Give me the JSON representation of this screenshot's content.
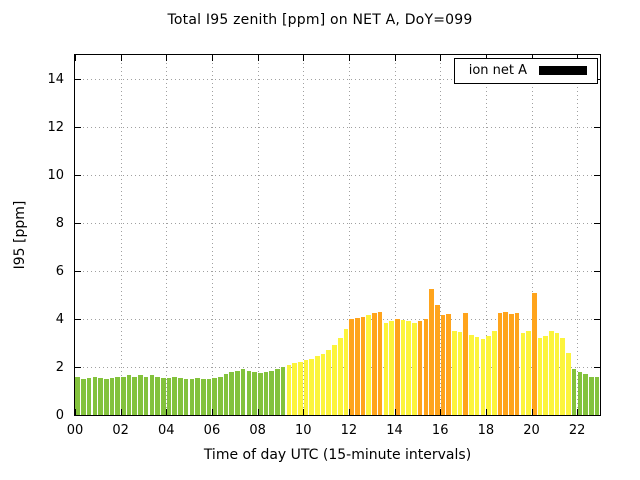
{
  "legend": {
    "label": "ion net A",
    "swatch_color": "#000000"
  },
  "chart_data": {
    "type": "bar",
    "title": "Total I95 zenith [ppm] on NET A, DoY=099",
    "xlabel": "Time of day UTC (15-minute intervals)",
    "ylabel": "I95 [ppm]",
    "xlim_hours": [
      0,
      23
    ],
    "ylim": [
      0,
      15
    ],
    "x_tick_hours": [
      0,
      2,
      4,
      6,
      8,
      10,
      12,
      14,
      16,
      18,
      20,
      22
    ],
    "x_tick_labels": [
      "00",
      "02",
      "04",
      "06",
      "08",
      "10",
      "12",
      "14",
      "16",
      "18",
      "20",
      "22"
    ],
    "y_ticks": [
      0,
      2,
      4,
      6,
      8,
      10,
      12,
      14
    ],
    "interval_minutes": 15,
    "start_time": "00:00",
    "grid": true,
    "legend_position": "top-right",
    "series_name": "ion net A",
    "level_colors": {
      "g": "#83c23d",
      "y": "#fcf43c",
      "o": "#ffa41c"
    },
    "values": [
      1.6,
      1.5,
      1.55,
      1.6,
      1.55,
      1.5,
      1.55,
      1.6,
      1.6,
      1.65,
      1.6,
      1.65,
      1.6,
      1.65,
      1.6,
      1.55,
      1.55,
      1.6,
      1.55,
      1.5,
      1.5,
      1.55,
      1.5,
      1.5,
      1.55,
      1.6,
      1.7,
      1.8,
      1.85,
      1.9,
      1.85,
      1.8,
      1.75,
      1.8,
      1.85,
      1.9,
      2.0,
      2.1,
      2.15,
      2.2,
      2.3,
      2.35,
      2.45,
      2.55,
      2.7,
      2.9,
      3.2,
      3.6,
      4.0,
      4.05,
      4.1,
      4.15,
      4.25,
      4.3,
      3.85,
      3.9,
      4.0,
      3.95,
      3.9,
      3.85,
      3.9,
      4.0,
      5.25,
      4.6,
      4.15,
      4.2,
      3.5,
      3.45,
      4.25,
      3.35,
      3.25,
      3.15,
      3.3,
      3.5,
      4.25,
      4.3,
      4.2,
      4.25,
      3.4,
      3.5,
      5.1,
      3.2,
      3.3,
      3.5,
      3.4,
      3.2,
      2.6,
      1.9,
      1.8,
      1.7,
      1.6,
      1.6
    ],
    "levels": [
      "g",
      "g",
      "g",
      "g",
      "g",
      "g",
      "g",
      "g",
      "g",
      "g",
      "g",
      "g",
      "g",
      "g",
      "g",
      "g",
      "g",
      "g",
      "g",
      "g",
      "g",
      "g",
      "g",
      "g",
      "g",
      "g",
      "g",
      "g",
      "g",
      "g",
      "g",
      "g",
      "g",
      "g",
      "g",
      "g",
      "g",
      "y",
      "y",
      "y",
      "y",
      "y",
      "y",
      "y",
      "y",
      "y",
      "y",
      "y",
      "o",
      "o",
      "o",
      "y",
      "o",
      "o",
      "y",
      "y",
      "o",
      "y",
      "y",
      "y",
      "o",
      "o",
      "o",
      "o",
      "o",
      "o",
      "y",
      "y",
      "o",
      "y",
      "y",
      "y",
      "y",
      "y",
      "o",
      "o",
      "o",
      "o",
      "y",
      "y",
      "o",
      "y",
      "y",
      "y",
      "y",
      "y",
      "y",
      "g",
      "g",
      "g",
      "g",
      "g"
    ]
  }
}
